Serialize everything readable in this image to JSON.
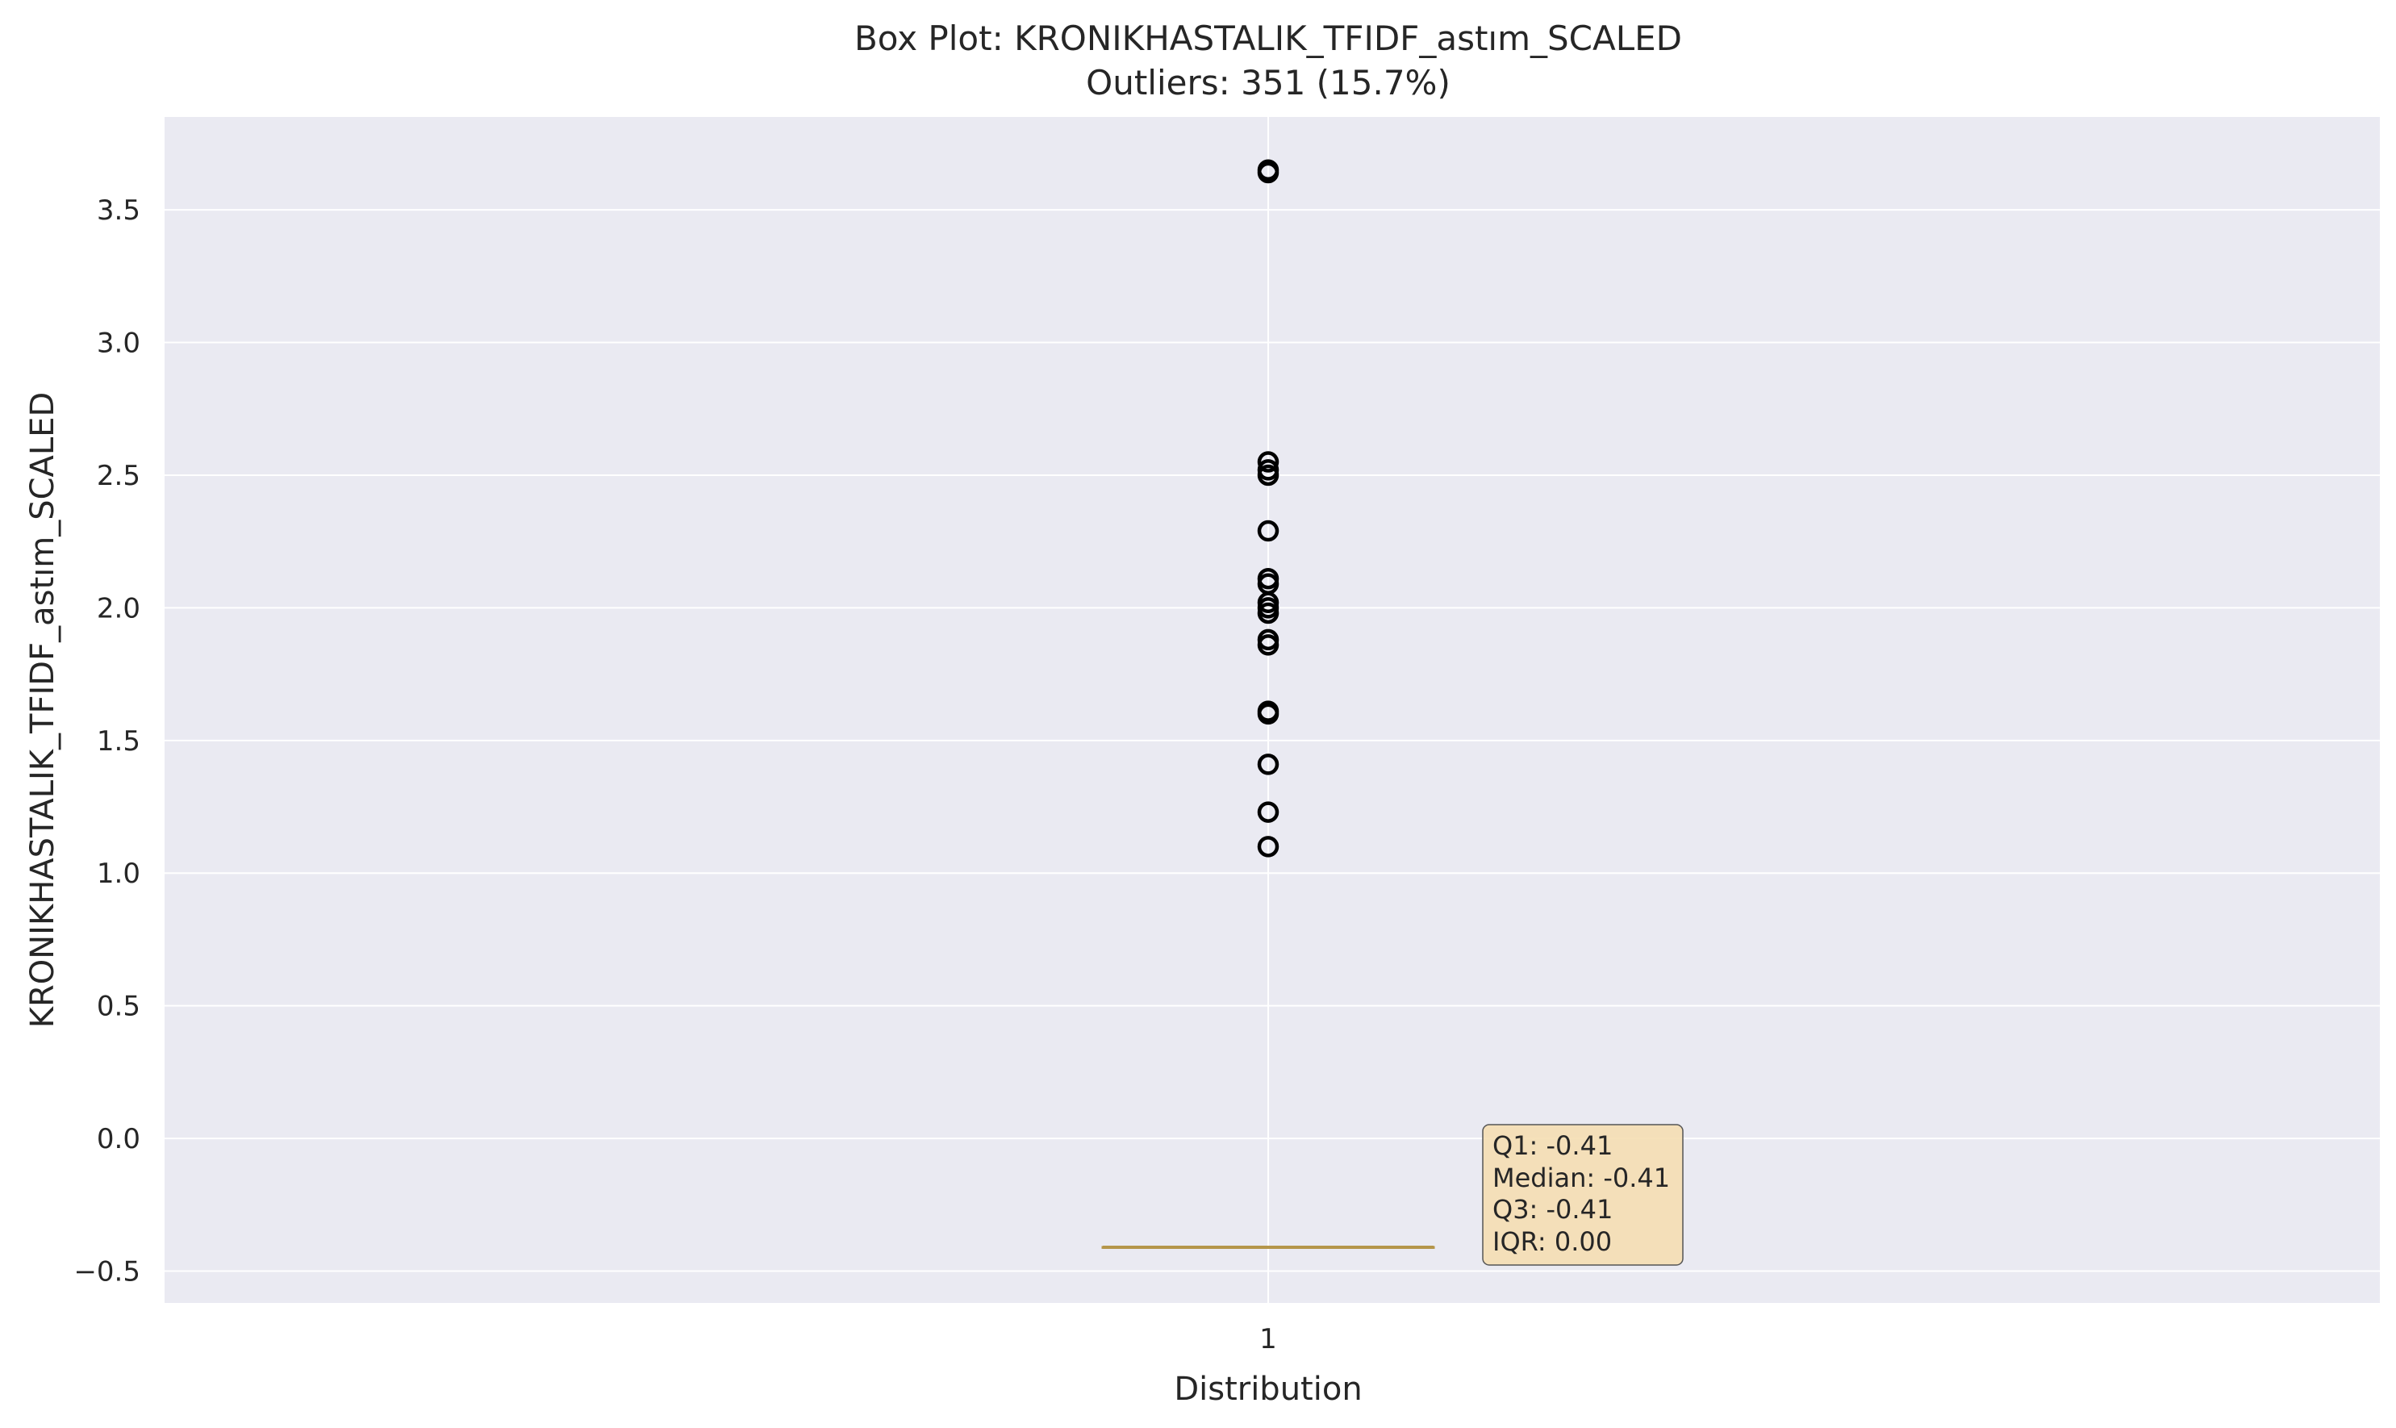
{
  "chart_data": {
    "type": "box",
    "title": "Box Plot: KRONIKHASTALIK_TFIDF_astım_SCALED",
    "subtitle": "Outliers: 351 (15.7%)",
    "xlabel": "Distribution",
    "ylabel": "KRONIKHASTALIK_TFIDF_astım_SCALED",
    "x_ticks": [
      "1"
    ],
    "y_ticks": [
      "−0.5",
      "0.0",
      "0.5",
      "1.0",
      "1.5",
      "2.0",
      "2.5",
      "3.0",
      "3.5"
    ],
    "y_tick_values": [
      -0.5,
      0.0,
      0.5,
      1.0,
      1.5,
      2.0,
      2.5,
      3.0,
      3.5
    ],
    "ylim": [
      -0.62,
      3.85
    ],
    "grid": true,
    "box": {
      "q1": -0.41,
      "median": -0.41,
      "q3": -0.41,
      "whisker_low": -0.41,
      "whisker_high": -0.41
    },
    "outliers": [
      1.1,
      1.23,
      1.41,
      1.6,
      1.61,
      1.86,
      1.88,
      1.98,
      2.0,
      2.02,
      2.09,
      2.11,
      2.29,
      2.5,
      2.52,
      2.55,
      3.64,
      3.65
    ],
    "stats_box": [
      "Q1: -0.41",
      "Median: -0.41",
      "Q3: -0.41",
      "IQR: 0.00"
    ],
    "colors": {
      "plot_background": "#eaeaf2",
      "grid": "#ffffff",
      "box_line": "#b5964a",
      "outlier": "#000000",
      "stats_box_fill": "#f5deb3"
    }
  }
}
